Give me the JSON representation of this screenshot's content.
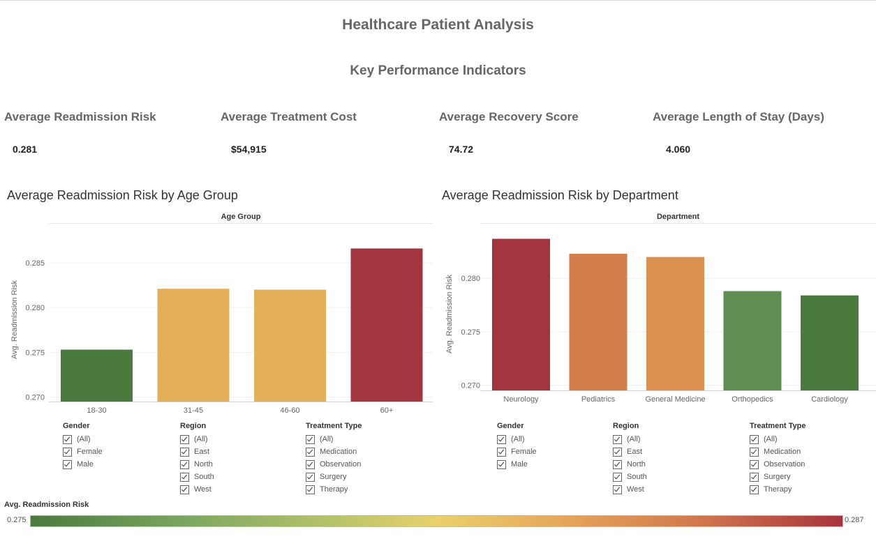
{
  "dashboard": {
    "title": "Healthcare Patient Analysis",
    "kpi_section_title": "Key Performance Indicators"
  },
  "kpis": [
    {
      "label": "Average Readmission Risk",
      "value": "0.281"
    },
    {
      "label": "Average Treatment Cost",
      "value": "$54,915"
    },
    {
      "label": "Average Recovery Score",
      "value": "74.72"
    },
    {
      "label": "Average Length of Stay (Days)",
      "value": "4.060"
    }
  ],
  "chart_data": [
    {
      "type": "bar",
      "title": "Average Readmission Risk by Age Group",
      "xlabel": "Age Group",
      "ylabel": "Avg. Readmission Risk",
      "categories": [
        "18-30",
        "31-45",
        "46-60",
        "60+"
      ],
      "values": [
        0.2753,
        0.2821,
        0.282,
        0.2866
      ],
      "ylim": [
        0.2695,
        0.2878
      ],
      "yticks": [
        0.27,
        0.275,
        0.28,
        0.285
      ],
      "ytick_labels": [
        "0.270",
        "0.275",
        "0.280",
        "0.285"
      ],
      "colors": [
        "#4a7a3e",
        "#e3af58",
        "#e3af58",
        "#a3353f"
      ],
      "grid": true
    },
    {
      "type": "bar",
      "title": "Average Readmission Risk by Department",
      "xlabel": "Department",
      "ylabel": "Avg. Readmission Risk",
      "categories": [
        "Neurology",
        "Pediatrics",
        "General Medicine",
        "Orthopedics",
        "Cardiology"
      ],
      "values": [
        0.2837,
        0.2823,
        0.282,
        0.2788,
        0.2784
      ],
      "ylim": [
        0.2695,
        0.2838
      ],
      "yticks": [
        0.27,
        0.275,
        0.28
      ],
      "ytick_labels": [
        "0.270",
        "0.275",
        "0.280"
      ],
      "colors": [
        "#a3353f",
        "#d47e4c",
        "#dc9150",
        "#5f8f50",
        "#4a7a3e"
      ],
      "grid": true
    }
  ],
  "filters_left": [
    {
      "title": "Gender",
      "items": [
        "(All)",
        "Female",
        "Male"
      ]
    },
    {
      "title": "Region",
      "items": [
        "(All)",
        "East",
        "North",
        "South",
        "West"
      ]
    },
    {
      "title": "Treatment Type",
      "items": [
        "(All)",
        "Medication",
        "Observation",
        "Surgery",
        "Therapy"
      ]
    }
  ],
  "filters_right": [
    {
      "title": "Gender",
      "items": [
        "(All)",
        "Female",
        "Male"
      ]
    },
    {
      "title": "Region",
      "items": [
        "(All)",
        "East",
        "North",
        "South",
        "West"
      ]
    },
    {
      "title": "Treatment Type",
      "items": [
        "(All)",
        "Medication",
        "Observation",
        "Surgery",
        "Therapy"
      ]
    }
  ],
  "legend": {
    "title": "Avg. Readmission Risk",
    "min_label": "0.275",
    "max_label": "0.287",
    "colors": [
      "#4a7a3e",
      "#e9d16c",
      "#a7333c"
    ]
  }
}
